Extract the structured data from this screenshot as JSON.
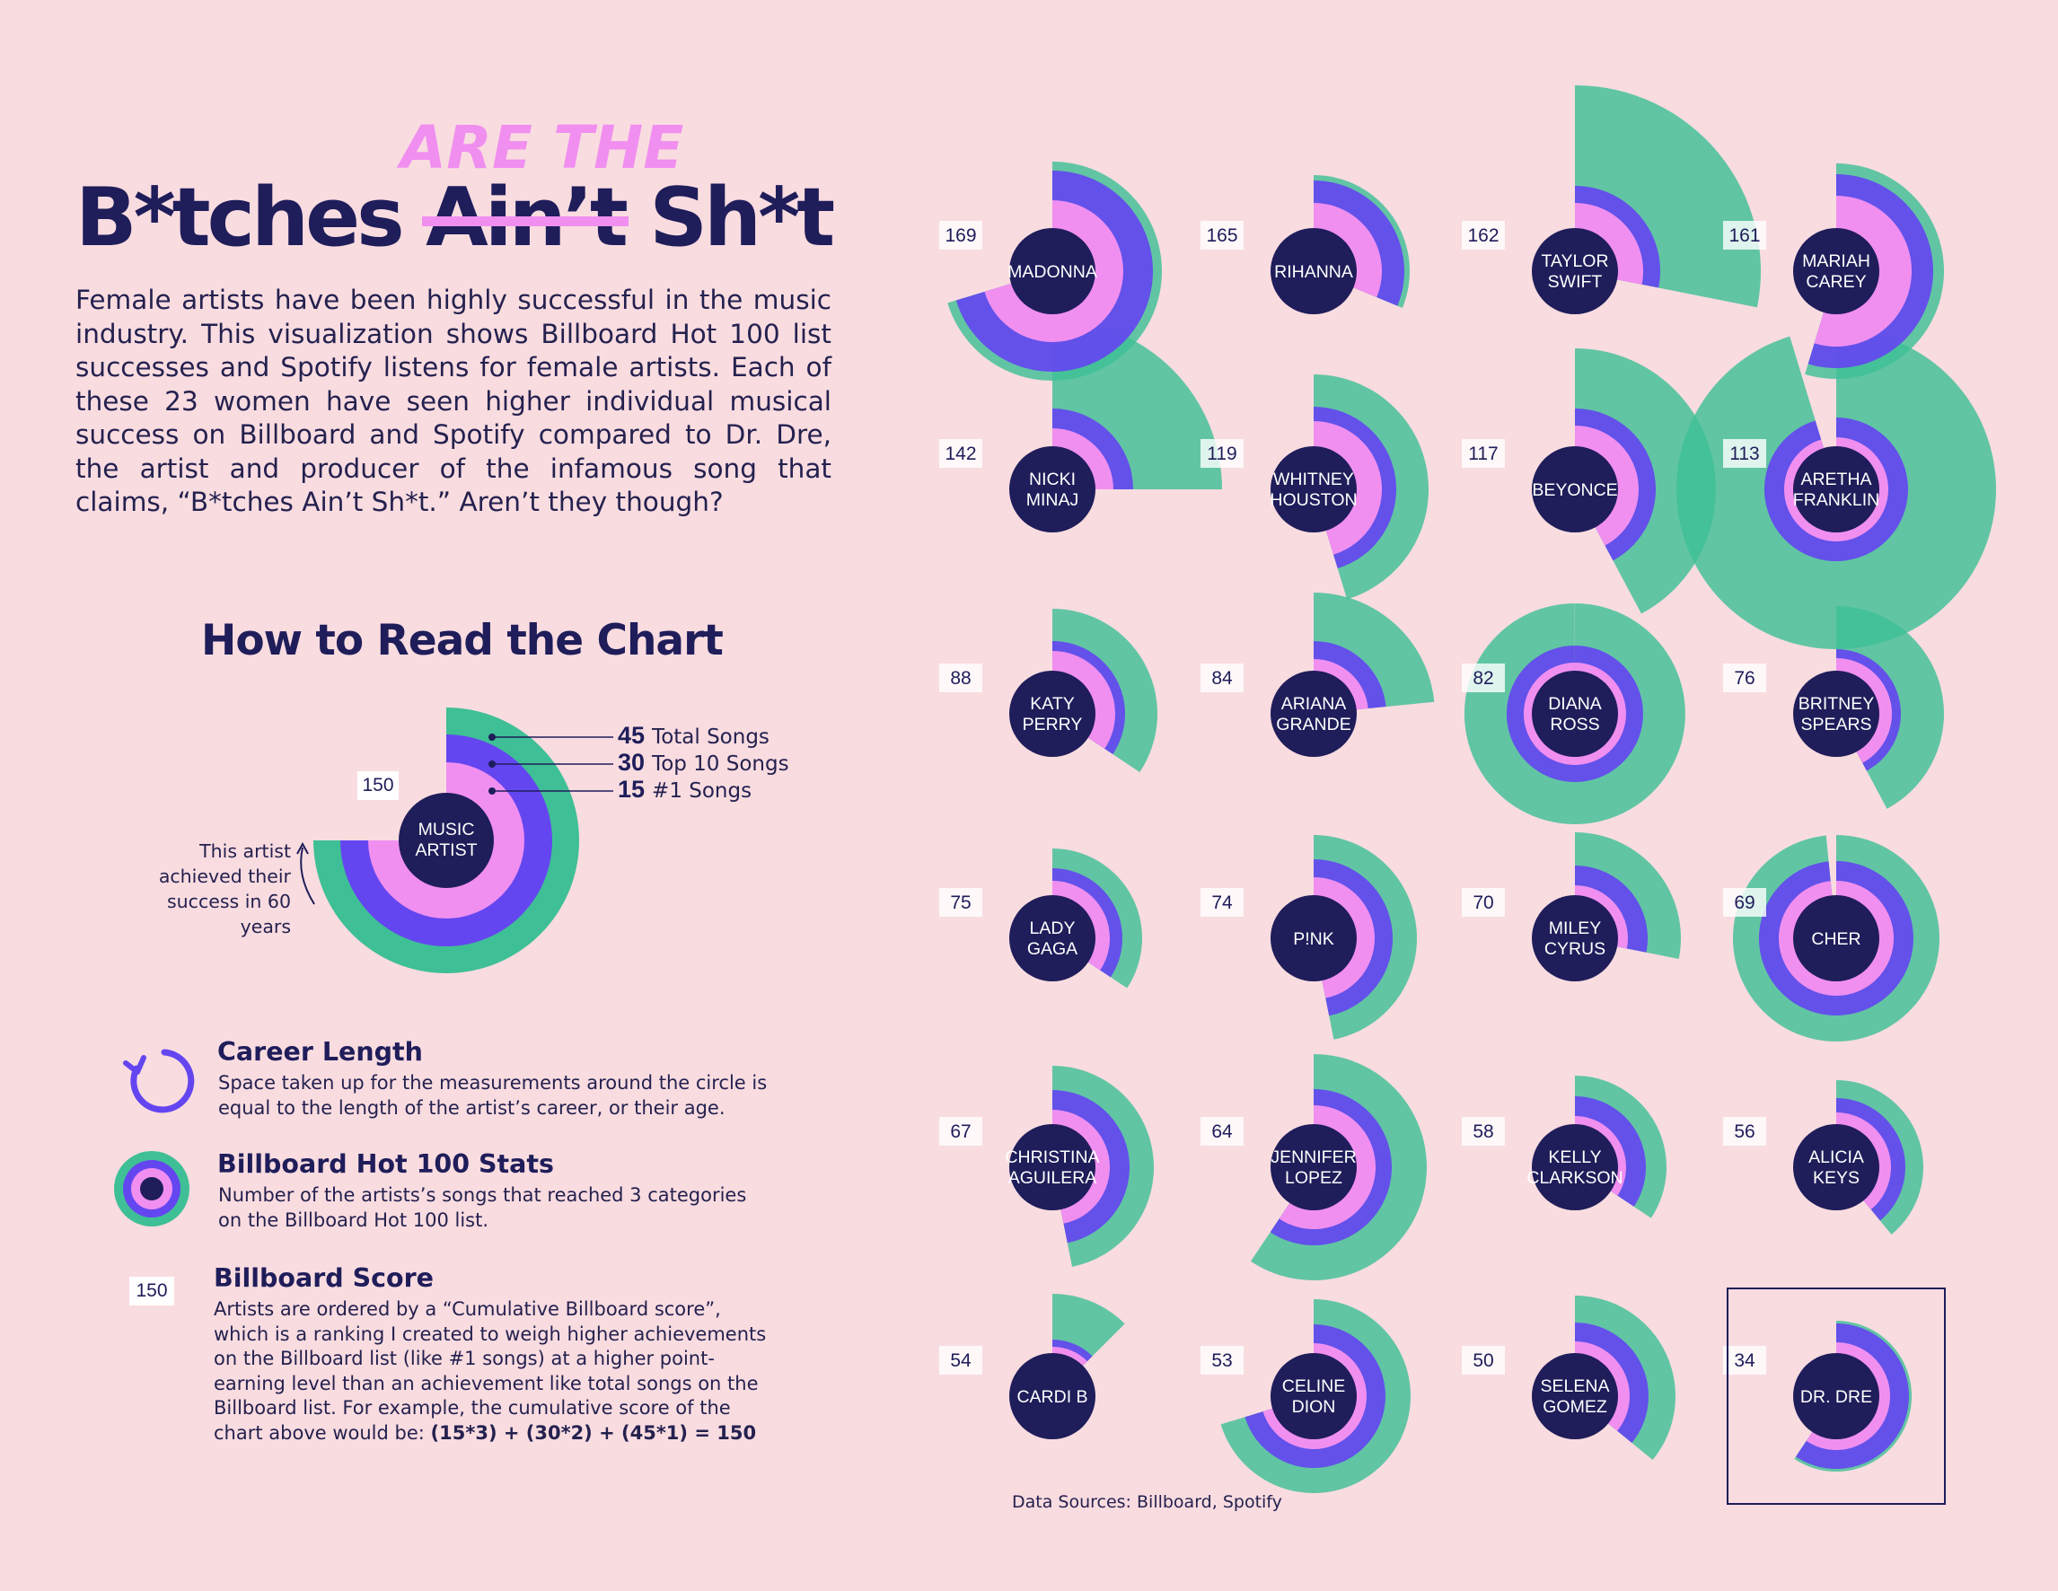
{
  "title": {
    "part1": "B*tches",
    "struck": "Ain’t",
    "part2": "Sh*t",
    "overlay": "ARE THE"
  },
  "intro": "Female artists have been highly successful in the music industry. This visualization shows Billboard Hot 100 list successes and Spotify listens for female artists. Each of these 23 women have seen higher individual musical success on Billboard and Spotify compared to Dr. Dre, the artist and producer of the infamous song that claims, “B*tches Ain’t Sh*t.” Aren’t they though?",
  "how_to_read": {
    "heading": "How to Read the Chart",
    "sample": {
      "score": "150",
      "name_line1": "MUSIC",
      "name_line2": "ARTIST",
      "total_value": "45",
      "total_label": "Total Songs",
      "top10_value": "30",
      "top10_label": "Top 10 Songs",
      "no1_value": "15",
      "no1_label": "#1 Songs",
      "career_note": "This artist achieved their success in 60 years"
    }
  },
  "legend": {
    "career": {
      "title": "Career Length",
      "desc": "Space taken up for the measurements around the circle is equal to the length of the artist’s career, or their age."
    },
    "billboard": {
      "title": "Billboard Hot 100 Stats",
      "desc": "Number of the artists’s songs that reached 3 categories on the Billboard Hot 100 list."
    },
    "score": {
      "badge": "150",
      "title": "Billboard Score",
      "desc": "Artists are ordered by a “Cumulative Billboard score”, which is a ranking I created to weigh higher achievements on the Billboard list (like #1 songs) at a higher point-earning level than an achievement like total songs on the Billboard list. For example, the cumulative score of the chart above would be:",
      "formula": "(15*3) + (30*2) + (45*1) = 150"
    }
  },
  "sources": "Data Sources: Billboard, Spotify",
  "colors": {
    "background": "#f9dce0",
    "navy": "#1f1d5a",
    "pink": "#f08ff0",
    "purple": "#6446f0",
    "green": "#3fbf96"
  },
  "chart_data": {
    "type": "radial-bar",
    "sort": "Cumulative Billboard score (descending)",
    "artists": [
      {
        "name": "MADONNA",
        "score": 169,
        "career_years": 45
      },
      {
        "name": "RIHANNA",
        "score": 165,
        "career_years": 20
      },
      {
        "name": "TAYLOR SWIFT",
        "score": 162,
        "career_years": 18
      },
      {
        "name": "MARIAH CAREY",
        "score": 161,
        "career_years": 35
      },
      {
        "name": "NICKI MINAJ",
        "score": 142,
        "career_years": 16
      },
      {
        "name": "WHITNEY HOUSTON",
        "score": 119,
        "career_years": 29
      },
      {
        "name": "BEYONCE",
        "score": 117,
        "career_years": 27
      },
      {
        "name": "ARETHA FRANKLIN",
        "score": 113,
        "career_years": 61
      },
      {
        "name": "KATY PERRY",
        "score": 88,
        "career_years": 22
      },
      {
        "name": "ARIANA GRANDE",
        "score": 84,
        "career_years": 15
      },
      {
        "name": "DIANA ROSS",
        "score": 82,
        "career_years": 64
      },
      {
        "name": "BRITNEY SPEARS",
        "score": 76,
        "career_years": 27
      },
      {
        "name": "LADY GAGA",
        "score": 75,
        "career_years": 22
      },
      {
        "name": "P!NK",
        "score": 74,
        "career_years": 30
      },
      {
        "name": "MILEY CYRUS",
        "score": 70,
        "career_years": 18
      },
      {
        "name": "CHER",
        "score": 69,
        "career_years": 63
      },
      {
        "name": "CHRISTINA AGUILERA",
        "score": 67,
        "career_years": 30
      },
      {
        "name": "JENNIFER LOPEZ",
        "score": 64,
        "career_years": 38
      },
      {
        "name": "KELLY CLARKSON",
        "score": 58,
        "career_years": 22
      },
      {
        "name": "ALICIA KEYS",
        "score": 56,
        "career_years": 25
      },
      {
        "name": "CARDI B",
        "score": 54,
        "career_years": 8
      },
      {
        "name": "CELINE DION",
        "score": 53,
        "career_years": 45
      },
      {
        "name": "SELENA GOMEZ",
        "score": 50,
        "career_years": 23
      },
      {
        "name": "DR. DRE",
        "score": 34,
        "career_years": 38
      }
    ]
  }
}
